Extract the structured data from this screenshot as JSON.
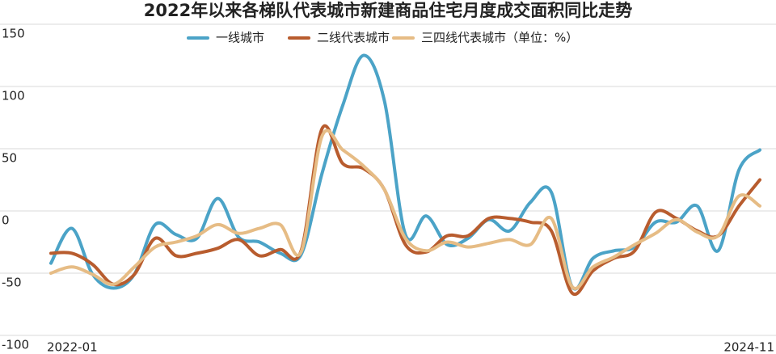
{
  "chart_data": {
    "type": "line",
    "title": "2022年以来各梯队代表城市新建商品住宅月度成交面积同比走势",
    "categories": [
      "2022-01",
      null,
      null,
      null,
      null,
      null,
      null,
      null,
      null,
      null,
      null,
      null,
      null,
      null,
      null,
      null,
      null,
      null,
      null,
      null,
      null,
      null,
      null,
      null,
      null,
      null,
      null,
      null,
      null,
      null,
      null,
      null,
      null,
      null,
      "2024-11"
    ],
    "series": [
      {
        "name": "一线城市",
        "color": "#4ba3c7",
        "values": [
          -42,
          -14,
          -51,
          -62,
          -51,
          -11,
          -19,
          -22,
          10,
          -21,
          -25,
          -34,
          -35,
          30,
          85,
          125,
          88,
          -19,
          -4,
          -27,
          -22,
          -7,
          -16,
          7,
          15,
          -61,
          -38,
          -32,
          -29,
          -9,
          -9,
          4,
          -32,
          33,
          49
        ]
      },
      {
        "name": "二线代表城市",
        "color": "#b85c2e",
        "values": [
          -34,
          -34,
          -43,
          -59,
          -51,
          -22,
          -36,
          -34,
          -30,
          -23,
          -36,
          -31,
          -32,
          66,
          38,
          34,
          17,
          -27,
          -33,
          -20,
          -20,
          -6,
          -6,
          -9,
          -16,
          -66,
          -48,
          -38,
          -32,
          -1,
          -6,
          -16,
          -20,
          4,
          25
        ]
      },
      {
        "name": "三四线代表城市（单位：%）",
        "color": "#e6bc85",
        "values": [
          -50,
          -45,
          -51,
          -59,
          -45,
          -29,
          -25,
          -20,
          -11,
          -18,
          -14,
          -11,
          -33,
          60,
          49,
          36,
          17,
          -22,
          -32,
          -25,
          -29,
          -26,
          -23,
          -27,
          -6,
          -61,
          -45,
          -37,
          -27,
          -18,
          -7,
          -17,
          -20,
          12,
          4
        ]
      }
    ],
    "ylim": [
      -100,
      150
    ],
    "yticks": [
      -100,
      -50,
      0,
      50,
      100,
      150
    ],
    "grid": true,
    "legend": "top"
  }
}
